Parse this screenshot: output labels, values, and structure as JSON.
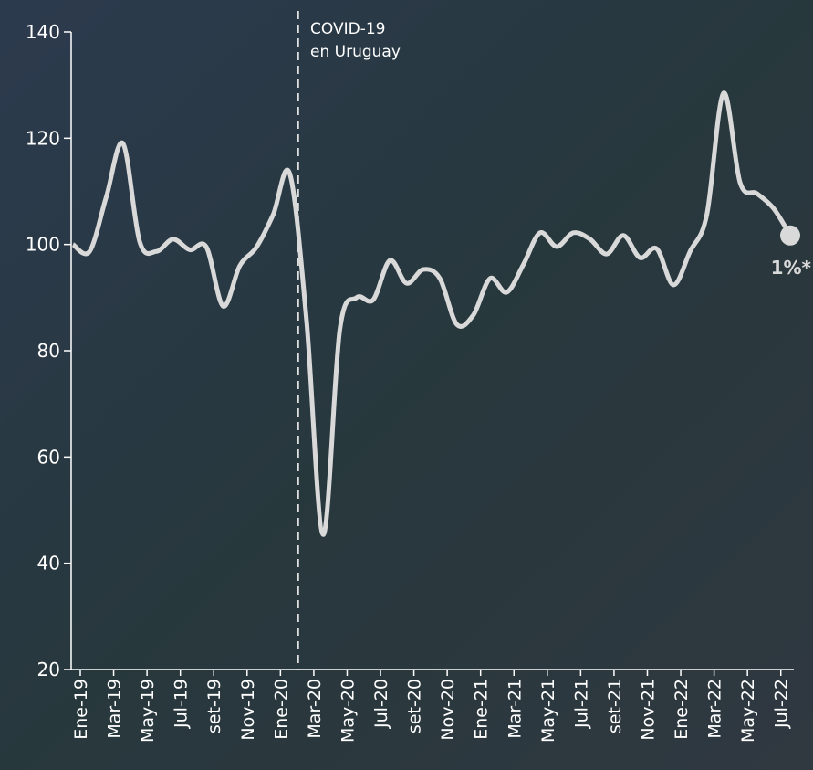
{
  "chart_data": {
    "type": "line",
    "annotation": "COVID-19",
    "annotation_line2": "en Uruguay",
    "end_label": "1%*",
    "categories": [
      "Ene-19",
      null,
      "Mar-19",
      null,
      "May-19",
      null,
      "Jul-19",
      null,
      "set-19",
      null,
      "Nov-19",
      null,
      "Ene-20",
      null,
      "Mar-20",
      null,
      "May-20",
      null,
      "Jul-20",
      null,
      "set-20",
      null,
      "Nov-20",
      null,
      "Ene-21",
      null,
      "Mar-21",
      null,
      "May-21",
      null,
      "Jul-21",
      null,
      "set-21",
      null,
      "Nov-21",
      null,
      "Ene-22",
      null,
      "Mar-22",
      null,
      "May-22",
      null,
      "Jul-22",
      null
    ],
    "values": [
      100,
      98.7,
      109,
      119,
      100.5,
      98.7,
      101,
      99,
      99.5,
      88.4,
      96,
      99.5,
      105.6,
      113.3,
      85.8,
      45.4,
      84,
      90,
      89.6,
      97,
      92.7,
      95.3,
      93.6,
      85,
      86.7,
      93.6,
      91,
      96.2,
      102.2,
      99.6,
      102.2,
      101,
      98.2,
      101.7,
      97.5,
      99.2,
      92.4,
      98.7,
      105.6,
      128.5,
      111.6,
      109.6,
      106.8,
      101.7
    ],
    "color": "#d9d9d9",
    "ylim": [
      20,
      140
    ],
    "yticks": [
      20,
      40,
      60,
      80,
      100,
      120,
      140
    ]
  }
}
